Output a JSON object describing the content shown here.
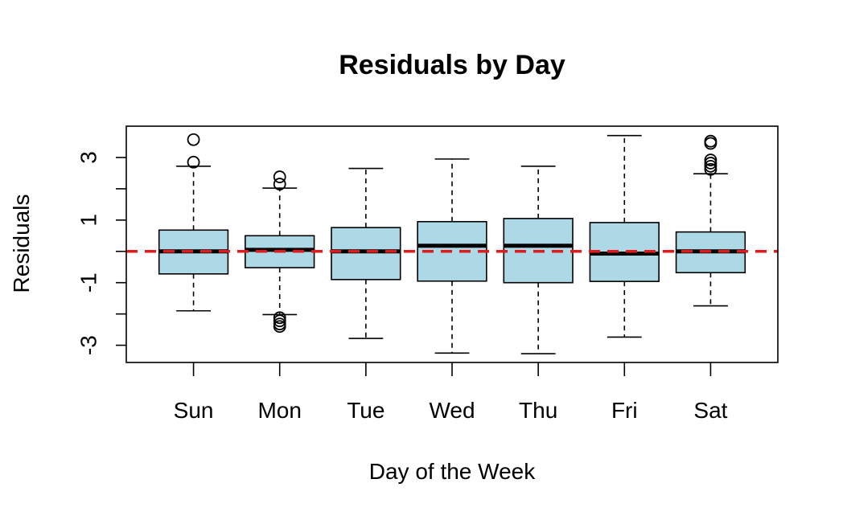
{
  "chart_data": {
    "type": "boxplot",
    "title": "Residuals by Day",
    "xlabel": "Day of the Week",
    "ylabel": "Residuals",
    "ylim": [
      -3.55,
      4.0
    ],
    "yticks": [
      -3,
      -2,
      -1,
      0,
      1,
      2,
      3
    ],
    "ytick_labels": [
      "-3",
      "",
      "-1",
      "",
      "1",
      "",
      "3"
    ],
    "categories": [
      "Sun",
      "Mon",
      "Tue",
      "Wed",
      "Thu",
      "Fri",
      "Sat"
    ],
    "boxes": [
      {
        "whisker_low": -1.9,
        "q1": -0.72,
        "median": 0.0,
        "q3": 0.68,
        "whisker_high": 2.72,
        "outliers": [
          2.85,
          3.57
        ]
      },
      {
        "whisker_low": -2.02,
        "q1": -0.52,
        "median": 0.05,
        "q3": 0.5,
        "whisker_high": 2.02,
        "outliers": [
          -2.12,
          -2.22,
          -2.32,
          -2.4,
          2.15,
          2.38
        ]
      },
      {
        "whisker_low": -2.78,
        "q1": -0.9,
        "median": 0.0,
        "q3": 0.76,
        "whisker_high": 2.65,
        "outliers": []
      },
      {
        "whisker_low": -3.25,
        "q1": -0.95,
        "median": 0.18,
        "q3": 0.95,
        "whisker_high": 2.95,
        "outliers": []
      },
      {
        "whisker_low": -3.27,
        "q1": -1.0,
        "median": 0.18,
        "q3": 1.05,
        "whisker_high": 2.72,
        "outliers": []
      },
      {
        "whisker_low": -2.74,
        "q1": -0.96,
        "median": -0.07,
        "q3": 0.92,
        "whisker_high": 3.7,
        "outliers": []
      },
      {
        "whisker_low": -1.74,
        "q1": -0.68,
        "median": 0.0,
        "q3": 0.62,
        "whisker_high": 2.48,
        "outliers": [
          2.62,
          2.72,
          2.82,
          2.92,
          3.45,
          3.52
        ]
      }
    ],
    "reference_line": {
      "y": 0,
      "style": "dashed",
      "color": "#e31a1c"
    },
    "box_fill": "#add8e6",
    "grid": false,
    "legend": "none"
  }
}
